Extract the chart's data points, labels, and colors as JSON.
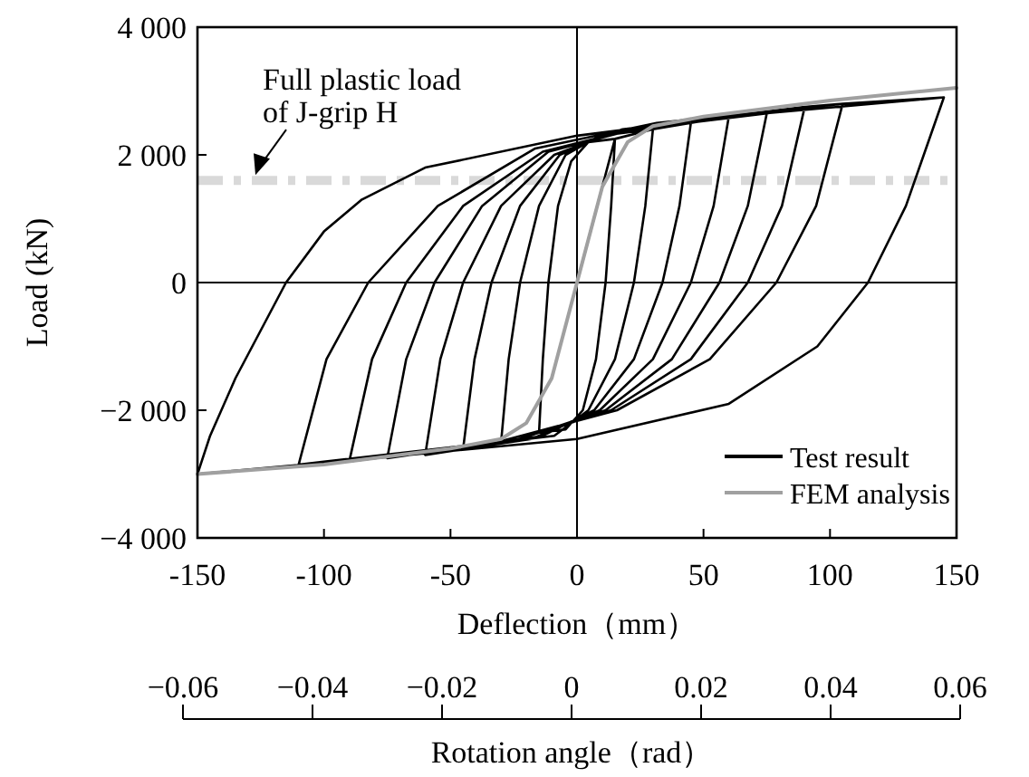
{
  "chart_data": {
    "type": "line",
    "xlabel": "Deflection（mm）",
    "ylabel": "Load (kN)",
    "x2label": "Rotation angle（rad）",
    "xlim": [
      -150,
      150
    ],
    "xticks": [
      -150,
      -100,
      -50,
      0,
      50,
      100,
      150
    ],
    "ylim": [
      -4000,
      4000
    ],
    "yticks": [
      {
        "value": -4000,
        "label": "−4 000"
      },
      {
        "value": -2000,
        "label": "−2 000"
      },
      0,
      {
        "value": 2000,
        "label": "2 000"
      },
      {
        "value": 4000,
        "label": "4 000"
      }
    ],
    "x2lim": [
      -0.06,
      0.06
    ],
    "x2ticks": [
      {
        "value": -0.06,
        "label": "−0.06"
      },
      {
        "value": -0.04,
        "label": "−0.04"
      },
      {
        "value": -0.02,
        "label": "−0.02"
      },
      0,
      0.02,
      0.04,
      0.06
    ],
    "grid": false,
    "legend": "bottom right",
    "marker": "none",
    "line_style": "solid",
    "ref_lines": [
      {
        "axis": "y",
        "value": 1600,
        "label": "Full plastic load\nof J-grip H",
        "color": "#d9d9d9",
        "line_style": "dashed"
      },
      {
        "axis": "x",
        "value": 0,
        "color": "#000000"
      },
      {
        "axis": "y",
        "value": 0,
        "color": "#000000"
      }
    ],
    "series": [
      {
        "name": "Test result",
        "color": "#000000",
        "x": [
          0,
          15,
          13.5,
          11.3,
          7.5,
          2.3,
          -4.5,
          -15,
          -13.5,
          -11.3,
          -7.5,
          -2.3,
          4.5,
          15,
          30,
          27,
          22.5,
          15,
          4.5,
          -9,
          -30,
          -27,
          -22.5,
          -15,
          -4.5,
          9,
          30,
          45,
          40.5,
          33.8,
          22.5,
          6.8,
          -13.5,
          -45,
          -40.5,
          -33.8,
          -22.5,
          -6.8,
          13.5,
          45,
          60,
          54,
          45,
          30,
          9,
          -18,
          -60,
          -54,
          -45,
          -30,
          -9,
          18,
          60,
          75,
          67.5,
          56.3,
          37.5,
          11.3,
          -22.5,
          -75,
          -67.5,
          -56.3,
          -37.5,
          -11.3,
          22.5,
          75,
          90,
          81,
          67.5,
          45,
          13.5,
          -27,
          -90,
          -81,
          -67.5,
          -45,
          -13.5,
          27,
          90,
          105,
          94.5,
          78.8,
          52.5,
          15.8,
          -31.5,
          -110,
          -99,
          -82.5,
          -55,
          -16.5,
          31.5,
          105,
          145,
          130,
          115,
          95,
          60,
          0,
          -80,
          -150,
          -145,
          -135,
          -115,
          -100,
          -85,
          -60,
          0,
          60,
          145
        ],
        "values": [
          0,
          2250,
          1200,
          0,
          -1200,
          -2000,
          -2300,
          -2350,
          -1200,
          0,
          1200,
          1900,
          2200,
          2250,
          2400,
          1200,
          0,
          -1200,
          -2000,
          -2400,
          -2500,
          -1200,
          0,
          1200,
          2000,
          2300,
          2400,
          2500,
          1200,
          0,
          -1200,
          -2000,
          -2400,
          -2600,
          -1200,
          0,
          1200,
          2000,
          2350,
          2500,
          2600,
          1200,
          0,
          -1200,
          -2000,
          -2450,
          -2700,
          -1200,
          0,
          1200,
          2000,
          2400,
          2600,
          2650,
          1200,
          0,
          -1200,
          -2000,
          -2450,
          -2750,
          -1200,
          0,
          1200,
          2050,
          2400,
          2650,
          2750,
          1200,
          0,
          -1200,
          -2000,
          -2500,
          -2800,
          -1200,
          0,
          1200,
          2050,
          2450,
          2750,
          2800,
          1200,
          0,
          -1200,
          -2000,
          -2500,
          -2850,
          -1200,
          0,
          1200,
          2100,
          2500,
          2800,
          2900,
          1200,
          0,
          -1000,
          -1900,
          -2450,
          -2750,
          -3000,
          -2400,
          -1500,
          0,
          800,
          1300,
          1800,
          2300,
          2600,
          2900
        ]
      },
      {
        "name": "FEM analysis",
        "color": "#a0a0a0",
        "x": [
          -150,
          -100,
          -50,
          -30,
          -20,
          -10,
          0,
          10,
          20,
          30,
          50,
          100,
          150
        ],
        "values": [
          -3000,
          -2850,
          -2600,
          -2450,
          -2200,
          -1500,
          0,
          1500,
          2200,
          2450,
          2600,
          2850,
          3050
        ]
      }
    ]
  }
}
